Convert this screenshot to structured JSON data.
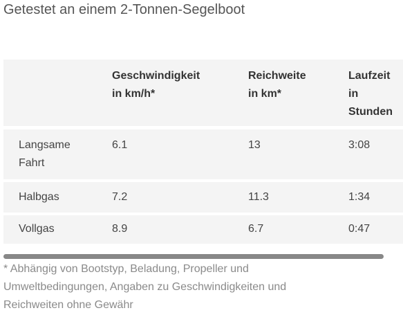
{
  "title": "Getestet an einem 2-Tonnen-Segelboot",
  "table": {
    "headers": [
      {
        "line1": "",
        "line2": "",
        "line3": ""
      },
      {
        "line1": "Geschwindigkeit",
        "line2": "in km/h*",
        "line3": ""
      },
      {
        "line1": "Reichweite",
        "line2": "in km*",
        "line3": ""
      },
      {
        "line1": "Laufzeit",
        "line2": "in",
        "line3": "Stunden"
      }
    ],
    "rows": [
      {
        "label_line1": "Langsame",
        "label_line2": "Fahrt",
        "speed": "6.1",
        "range": "13",
        "runtime": "3:08"
      },
      {
        "label_line1": "Halbgas",
        "label_line2": "",
        "speed": "7.2",
        "range": "11.3",
        "runtime": "1:34"
      },
      {
        "label_line1": "Vollgas",
        "label_line2": "",
        "speed": "8.9",
        "range": "6.7",
        "runtime": "0:47"
      }
    ]
  },
  "footnote": {
    "line1": "* Abhängig von Bootstyp, Beladung, Propeller und",
    "line2": "Umweltbedingungen, Angaben zu Geschwindigkeiten und",
    "line3": "Reichweiten ohne Gewähr"
  },
  "colors": {
    "row_background": "#f4f4f4",
    "scrollbar": "#888888"
  }
}
